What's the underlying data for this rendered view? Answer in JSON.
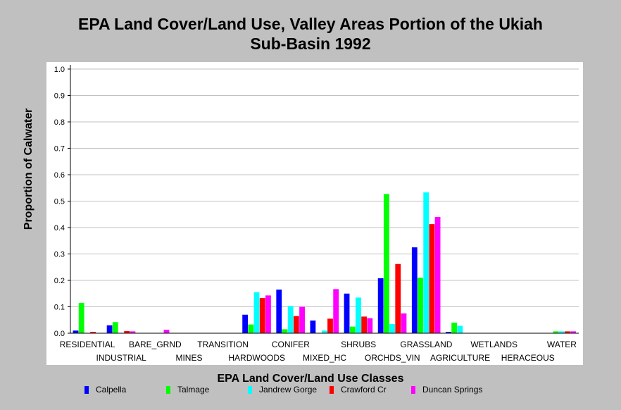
{
  "chart_data": {
    "type": "bar",
    "title_lines": [
      "EPA Land Cover/Land Use, Valley Areas Portion of the Ukiah",
      "Sub-Basin 1992"
    ],
    "xlabel": "EPA Land Cover/Land Use Classes",
    "ylabel": "Proportion of Calwater",
    "ylim": [
      0,
      1.0
    ],
    "yticks": [
      "0.0",
      "0.1",
      "0.2",
      "0.3",
      "0.4",
      "0.5",
      "0.6",
      "0.7",
      "0.8",
      "0.9",
      "1.0"
    ],
    "grid": true,
    "legend": "bottom",
    "categories": [
      "RESIDENTIAL",
      "INDUSTRIAL",
      "BARE_GRND",
      "MINES",
      "TRANSITION",
      "HARDWOODS",
      "CONIFER",
      "MIXED_HC",
      "SHRUBS",
      "ORCHDS_VIN",
      "GRASSLAND",
      "AGRICULTURE",
      "WETLANDS",
      "HERACEOUS",
      "WATER"
    ],
    "series": [
      {
        "name": "Calpella",
        "color": "#0000ff",
        "values": [
          0.01,
          0.03,
          0,
          0,
          0,
          0.07,
          0.165,
          0.048,
          0.15,
          0.208,
          0.325,
          0.005,
          0,
          0,
          0
        ]
      },
      {
        "name": "Talmage",
        "color": "#00ff00",
        "values": [
          0.115,
          0.042,
          0,
          0,
          0,
          0.033,
          0.015,
          0,
          0.025,
          0.527,
          0.21,
          0.04,
          0,
          0,
          0.007
        ]
      },
      {
        "name": "Jandrew Gorge",
        "color": "#00ffff",
        "values": [
          0,
          0,
          0,
          0,
          0,
          0.155,
          0.103,
          0.01,
          0.135,
          0.035,
          0.533,
          0.028,
          0,
          0,
          0.007
        ]
      },
      {
        "name": "Crawford Cr",
        "color": "#ff0000",
        "values": [
          0.005,
          0.008,
          0,
          0,
          0,
          0.133,
          0.065,
          0.055,
          0.063,
          0.262,
          0.413,
          0,
          0,
          0,
          0.007
        ]
      },
      {
        "name": "Duncan Springs",
        "color": "#ff00ff",
        "values": [
          0,
          0.007,
          0.013,
          0,
          0,
          0.143,
          0.1,
          0.167,
          0.057,
          0.075,
          0.44,
          0,
          0,
          0,
          0.007
        ]
      }
    ]
  }
}
